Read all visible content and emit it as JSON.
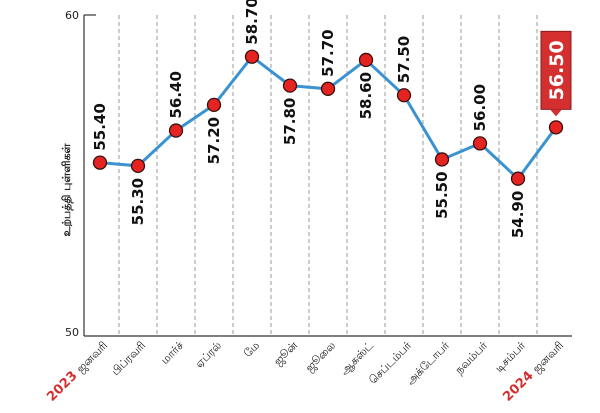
{
  "chart_data": {
    "type": "line",
    "ylabel": "உற்பத்தி புள்ளிகள்",
    "ylim": [
      50,
      60
    ],
    "yticks": [
      "60",
      "50"
    ],
    "categories": [
      {
        "year": "2023",
        "month": "ஜனவரி"
      },
      {
        "year": "",
        "month": "பிப்ரவரி"
      },
      {
        "year": "",
        "month": "மார்ச்"
      },
      {
        "year": "",
        "month": "ஏப்ரல்"
      },
      {
        "year": "",
        "month": "மே"
      },
      {
        "year": "",
        "month": "ஜூன்"
      },
      {
        "year": "",
        "month": "ஜூலை"
      },
      {
        "year": "",
        "month": "ஆகஸ்ட்"
      },
      {
        "year": "",
        "month": "செப்டம்பர்"
      },
      {
        "year": "",
        "month": "அக்டோபர்"
      },
      {
        "year": "",
        "month": "நவம்பர்"
      },
      {
        "year": "",
        "month": "டிசம்பர்"
      },
      {
        "year": "2024",
        "month": "ஜனவரி"
      }
    ],
    "values": [
      55.4,
      55.3,
      56.4,
      57.2,
      58.7,
      57.8,
      57.7,
      58.6,
      57.5,
      55.5,
      56.0,
      54.9,
      56.5
    ],
    "value_labels": [
      "55.40",
      "55.30",
      "56.40",
      "57.20",
      "58.70",
      "57.80",
      "57.70",
      "58.60",
      "57.50",
      "55.50",
      "56.00",
      "54.90",
      "56.50"
    ],
    "grid_vertical": true,
    "highlight_index": 12,
    "colors": {
      "line": "#3a93d0",
      "marker": "#e52421",
      "highlight_box": "#d32f2f",
      "grid": "#9a9a9a"
    }
  }
}
